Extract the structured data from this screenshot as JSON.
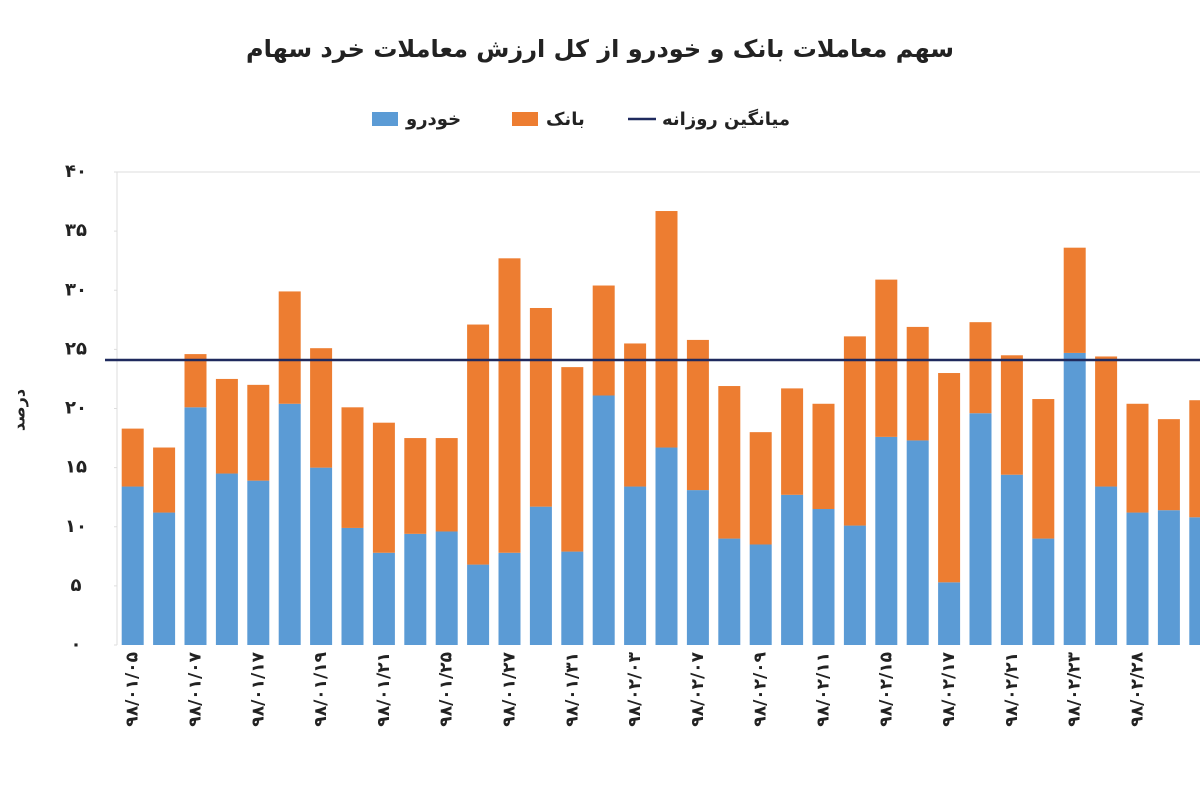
{
  "chart_data": {
    "type": "bar",
    "stacked": true,
    "title": "سهم معاملات بانک و خودرو از کل ارزش معاملات خرد سهام",
    "y_label": "درصد",
    "categories": [
      "۹۸/۰۱/۰۵",
      null,
      "۹۸/۰۱/۰۷",
      null,
      "۹۸/۰۱/۱۷",
      null,
      "۹۸/۰۱/۱۹",
      null,
      "۹۸/۰۱/۲۱",
      null,
      "۹۸/۰۱/۲۵",
      null,
      "۹۸/۰۱/۲۷",
      null,
      "۹۸/۰۱/۳۱",
      null,
      "۹۸/۰۲/۰۳",
      null,
      "۹۸/۰۲/۰۷",
      null,
      "۹۸/۰۲/۰۹",
      null,
      "۹۸/۰۲/۱۱",
      null,
      "۹۸/۰۲/۱۵",
      null,
      "۹۸/۰۲/۱۷",
      null,
      "۹۸/۰۲/۲۱",
      null,
      "۹۸/۰۲/۲۳",
      null,
      "۹۸/۰۲/۲۸",
      null,
      null
    ],
    "series": [
      {
        "name": "خودرو",
        "color": "#5b9bd5",
        "values": [
          13.4,
          11.2,
          20.1,
          14.5,
          13.9,
          20.4,
          15.0,
          9.9,
          7.8,
          9.4,
          9.6,
          6.8,
          7.8,
          11.7,
          7.9,
          21.1,
          13.4,
          16.7,
          13.1,
          9.0,
          8.5,
          12.7,
          11.5,
          10.1,
          17.6,
          17.3,
          5.3,
          19.6,
          14.4,
          9.0,
          24.7,
          13.4,
          11.2,
          11.4,
          10.8
        ]
      },
      {
        "name": "بانک",
        "color": "#ed7d31",
        "values": [
          4.9,
          5.5,
          4.5,
          8.0,
          8.1,
          9.5,
          10.1,
          10.2,
          11.0,
          8.1,
          7.9,
          20.3,
          24.9,
          16.8,
          15.6,
          9.3,
          12.1,
          20.0,
          12.7,
          12.9,
          9.5,
          9.0,
          8.9,
          16.0,
          13.3,
          9.6,
          17.7,
          7.7,
          10.1,
          11.8,
          8.9,
          11.0,
          9.2,
          7.7,
          9.9
        ]
      }
    ],
    "average": {
      "name": "میانگین روزانه",
      "color": "#1f2a5e",
      "value": 24.1
    },
    "ylim": [
      0,
      40
    ],
    "yticks": [
      {
        "value": 0,
        "label": "۰"
      },
      {
        "value": 5,
        "label": "۵"
      },
      {
        "value": 10,
        "label": "۱۰"
      },
      {
        "value": 15,
        "label": "۱۵"
      },
      {
        "value": 20,
        "label": "۲۰"
      },
      {
        "value": 25,
        "label": "۲۵"
      },
      {
        "value": 30,
        "label": "۳۰"
      },
      {
        "value": 35,
        "label": "۳۵"
      },
      {
        "value": 40,
        "label": "۴۰"
      }
    ]
  }
}
